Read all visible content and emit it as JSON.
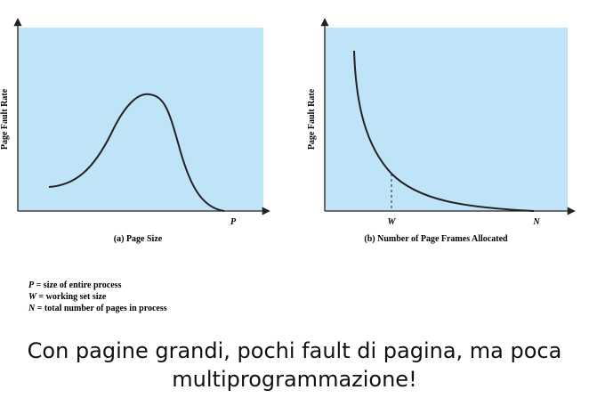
{
  "panels": [
    {
      "y_label": "Page Fault Rate",
      "x_marks": [
        "P"
      ],
      "caption": "(a) Page Size"
    },
    {
      "y_label": "Page Fault Rate",
      "x_marks": [
        "W",
        "N"
      ],
      "caption": "(b) Number of Page Frames Allocated"
    }
  ],
  "legend": [
    {
      "symbol": "P",
      "text": "= size of entire process"
    },
    {
      "symbol": "W",
      "text": "= working set size"
    },
    {
      "symbol": "N",
      "text": "= total number of pages in process"
    }
  ],
  "footer": {
    "lines": [
      "Con pagine grandi, pochi fault di pagina, ma poca",
      "multiprogrammazione!"
    ]
  }
}
